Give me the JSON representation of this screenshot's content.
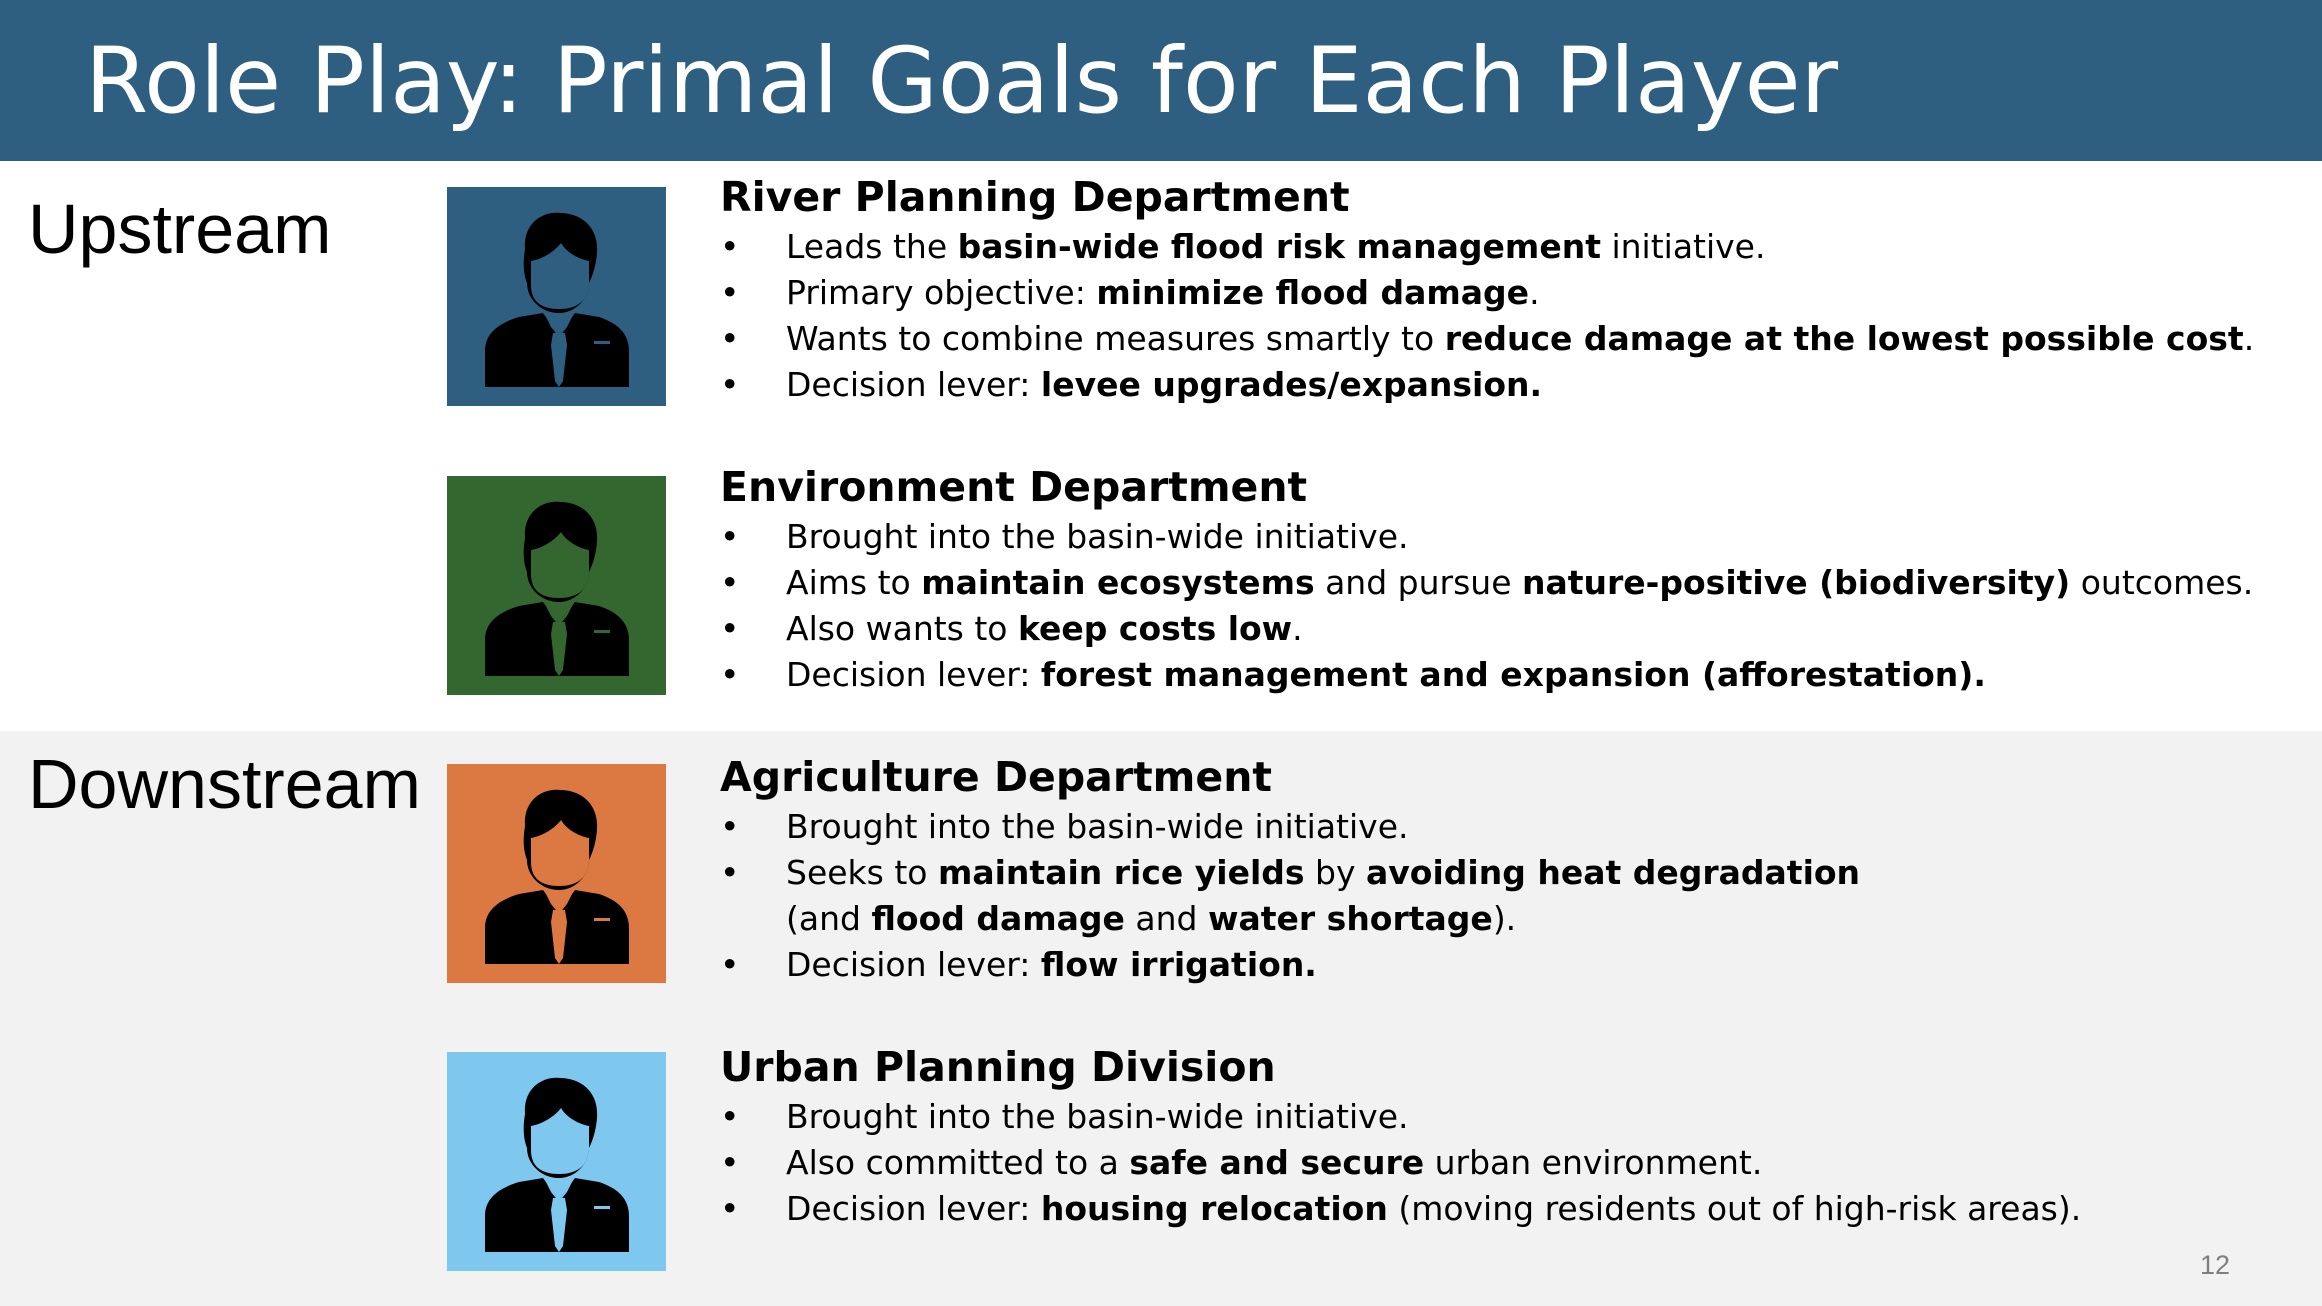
{
  "slide": {
    "title": "Role Play: Primal Goals for Each Player",
    "page_number": "12"
  },
  "regions": {
    "upstream": "Upstream",
    "downstream": "Downstream"
  },
  "colors": {
    "title_bar": "#2f5f80",
    "river_avatar": "#2f5f80",
    "environment_avatar": "#34672f",
    "agriculture_avatar": "#dc7841",
    "urban_avatar": "#7ec8f0",
    "downstream_background": "#f2f2f2"
  },
  "players": [
    {
      "name": "River Planning Department",
      "icon": "businessman-icon",
      "bullets": [
        [
          {
            "t": "Leads the "
          },
          {
            "t": "basin-wide flood risk management",
            "b": true
          },
          {
            "t": " initiative."
          }
        ],
        [
          {
            "t": "Primary objective: "
          },
          {
            "t": "minimize flood damage",
            "b": true
          },
          {
            "t": "."
          }
        ],
        [
          {
            "t": "Wants to combine measures smartly to "
          },
          {
            "t": "reduce damage at the lowest possible cost",
            "b": true
          },
          {
            "t": "."
          }
        ],
        [
          {
            "t": "Decision lever: "
          },
          {
            "t": "levee upgrades/expansion.",
            "b": true
          }
        ]
      ]
    },
    {
      "name": "Environment Department",
      "icon": "businessman-icon",
      "bullets": [
        [
          {
            "t": "Brought into the basin-wide initiative."
          }
        ],
        [
          {
            "t": "Aims to "
          },
          {
            "t": "maintain ecosystems",
            "b": true
          },
          {
            "t": " and pursue "
          },
          {
            "t": "nature-positive (biodiversity)",
            "b": true
          },
          {
            "t": " outcomes."
          }
        ],
        [
          {
            "t": "Also wants to "
          },
          {
            "t": "keep costs low",
            "b": true
          },
          {
            "t": "."
          }
        ],
        [
          {
            "t": "Decision lever: "
          },
          {
            "t": "forest management and expansion (afforestation).",
            "b": true
          }
        ]
      ]
    },
    {
      "name": "Agriculture Department",
      "icon": "businessman-icon",
      "bullets": [
        [
          {
            "t": "Brought into the basin-wide initiative."
          }
        ],
        [
          {
            "t": "Seeks to "
          },
          {
            "t": "maintain rice yields",
            "b": true
          },
          {
            "t": " by "
          },
          {
            "t": "avoiding heat degradation",
            "b": true
          },
          {
            "br": true
          },
          {
            "t": "(and "
          },
          {
            "t": "flood damage",
            "b": true
          },
          {
            "t": " and "
          },
          {
            "t": "water shortage",
            "b": true
          },
          {
            "t": ")."
          }
        ],
        [
          {
            "t": "Decision lever: "
          },
          {
            "t": "flow irrigation.",
            "b": true
          }
        ]
      ]
    },
    {
      "name": "Urban Planning Division",
      "icon": "businessman-icon",
      "bullets": [
        [
          {
            "t": "Brought into the basin-wide initiative."
          }
        ],
        [
          {
            "t": "Also committed to a "
          },
          {
            "t": "safe and secure",
            "b": true
          },
          {
            "t": " urban environment."
          }
        ],
        [
          {
            "t": "Decision lever: "
          },
          {
            "t": "housing relocation",
            "b": true
          },
          {
            "t": " (moving residents out of high-risk areas)."
          }
        ]
      ]
    }
  ]
}
